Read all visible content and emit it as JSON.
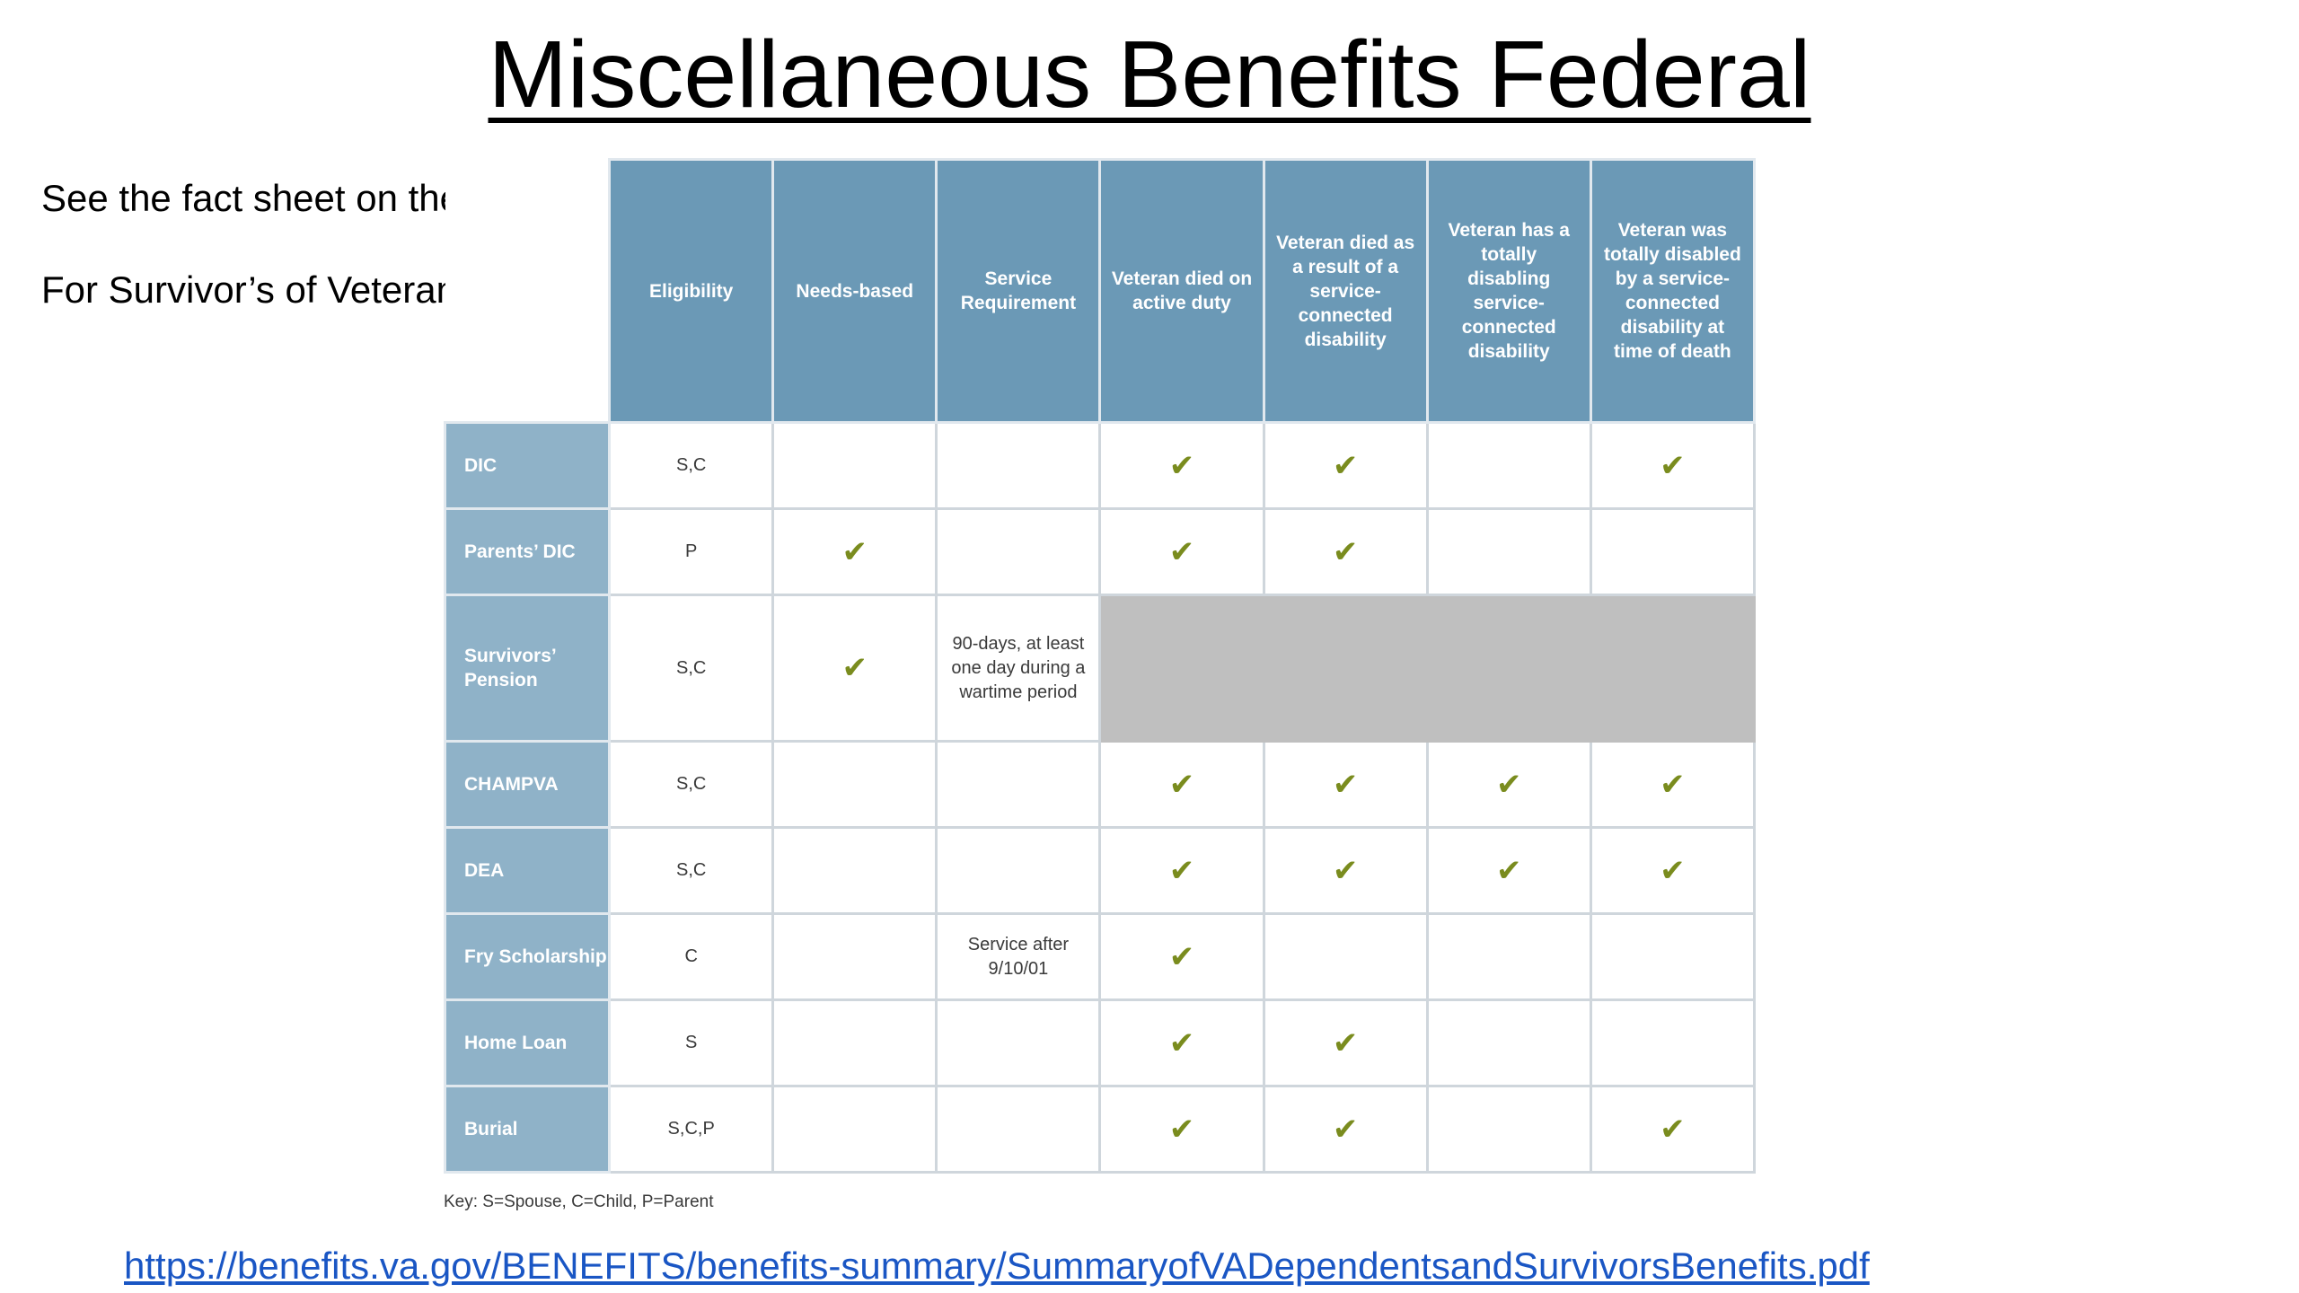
{
  "title": "Miscellaneous Benefits Federal",
  "notes": [
    "See the fact sheet on the table.",
    "For Survivor’s of Veterans."
  ],
  "table": {
    "headers": [
      "Eligibility",
      "Needs-based",
      "Service Requirement",
      "Veteran died on active duty",
      "Veteran died as a result of a service-connected disability",
      "Veteran has a totally disabling service-connected disability",
      "Veteran was totally disabled by a service-connected disability at time of death"
    ],
    "check_mark": "✔",
    "check_color": "#7a8c1e",
    "rows": [
      {
        "name": "DIC",
        "eligibility": "S,C",
        "needs_based": "",
        "service_requirement": "",
        "died_active_duty": "✔",
        "died_service_connected": "✔",
        "totally_disabling": "",
        "totally_disabled_at_death": "✔"
      },
      {
        "name": "Parents’ DIC",
        "eligibility": "P",
        "needs_based": "✔",
        "service_requirement": "",
        "died_active_duty": "✔",
        "died_service_connected": "✔",
        "totally_disabling": "",
        "totally_disabled_at_death": ""
      },
      {
        "name": "Survivors’ Pension",
        "eligibility": "S,C",
        "needs_based": "✔",
        "service_requirement": "90-days, at least one day during a wartime period"
      },
      {
        "name": "CHAMPVA",
        "eligibility": "S,C",
        "needs_based": "",
        "service_requirement": "",
        "died_active_duty": "✔",
        "died_service_connected": "✔",
        "totally_disabling": "✔",
        "totally_disabled_at_death": "✔"
      },
      {
        "name": "DEA",
        "eligibility": "S,C",
        "needs_based": "",
        "service_requirement": "",
        "died_active_duty": "✔",
        "died_service_connected": "✔",
        "totally_disabling": "✔",
        "totally_disabled_at_death": "✔"
      },
      {
        "name": "Fry Scholarship",
        "eligibility": "C",
        "needs_based": "",
        "service_requirement": "Service after 9/10/01",
        "died_active_duty": "✔",
        "died_service_connected": "",
        "totally_disabling": "",
        "totally_disabled_at_death": ""
      },
      {
        "name": "Home Loan",
        "eligibility": "S",
        "needs_based": "",
        "service_requirement": "",
        "died_active_duty": "✔",
        "died_service_connected": "✔",
        "totally_disabling": "",
        "totally_disabled_at_death": ""
      },
      {
        "name": "Burial",
        "eligibility": "S,C,P",
        "needs_based": "",
        "service_requirement": "",
        "died_active_duty": "✔",
        "died_service_connected": "✔",
        "totally_disabling": "",
        "totally_disabled_at_death": "✔"
      }
    ],
    "header_color": "#6b99b6",
    "row_header_color": "#8fb2c8",
    "grey_block_color": "#bfbfbf"
  },
  "key": "Key: S=Spouse, C=Child, P=Parent",
  "link": "https://benefits.va.gov/BENEFITS/benefits-summary/SummaryofVADependentsandSurvivorsBenefits.pdf",
  "link_color": "#1a56c4"
}
